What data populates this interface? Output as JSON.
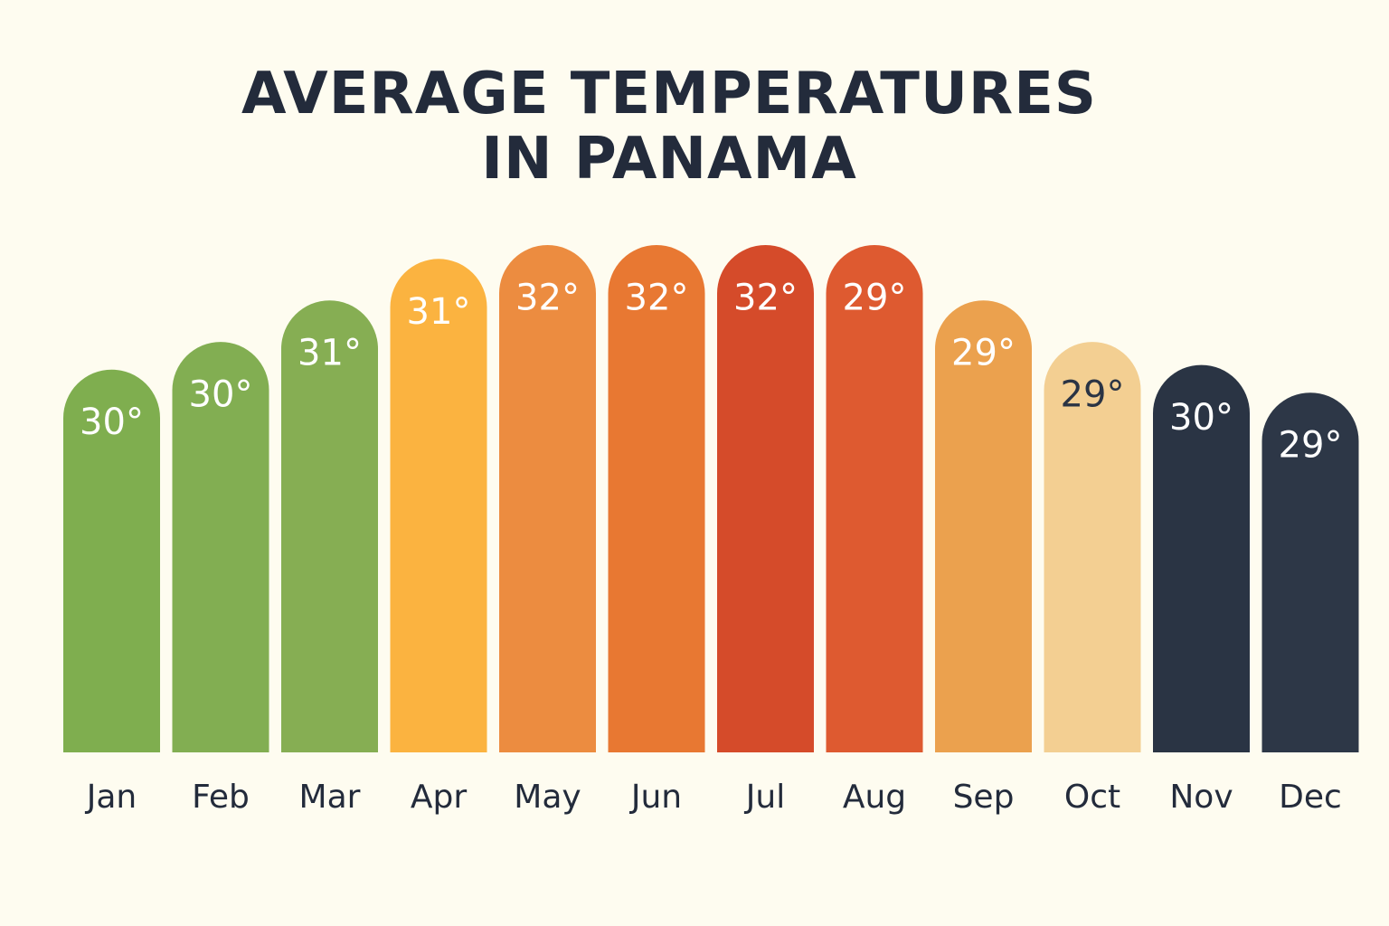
{
  "chart_data": {
    "type": "bar",
    "title": "AVERAGE TEMPERATURES IN PANAMA",
    "xlabel": "",
    "ylabel": "",
    "categories": [
      "Jan",
      "Feb",
      "Mar",
      "Apr",
      "May",
      "Jun",
      "Jul",
      "Aug",
      "Sep",
      "Oct",
      "Nov",
      "Dec"
    ],
    "values": [
      30,
      30,
      31,
      31,
      32,
      32,
      32,
      29,
      29,
      29,
      30,
      29
    ],
    "value_labels": [
      "30°",
      "30°",
      "31°",
      "31°",
      "32°",
      "32°",
      "32°",
      "29°",
      "29°",
      "29°",
      "30°",
      "29°"
    ],
    "bar_fill_levels": [
      0.83,
      0.89,
      0.98,
      1.07,
      1.1,
      1.1,
      1.1,
      1.1,
      0.98,
      0.89,
      0.84,
      0.78
    ],
    "colors": [
      "#7fae4f",
      "#82ae52",
      "#86ae53",
      "#fbb340",
      "#ec8c40",
      "#e87832",
      "#d54b2a",
      "#de5a30",
      "#eba14e",
      "#f3cf92",
      "#2a3444",
      "#2d3747"
    ],
    "label_colors": [
      "#ffffff",
      "#ffffff",
      "#ffffff",
      "#ffffff",
      "#ffffff",
      "#ffffff",
      "#ffffff",
      "#ffffff",
      "#ffffff",
      "#2a3444",
      "#ffffff",
      "#ffffff"
    ],
    "grid": false,
    "legend": "none"
  }
}
